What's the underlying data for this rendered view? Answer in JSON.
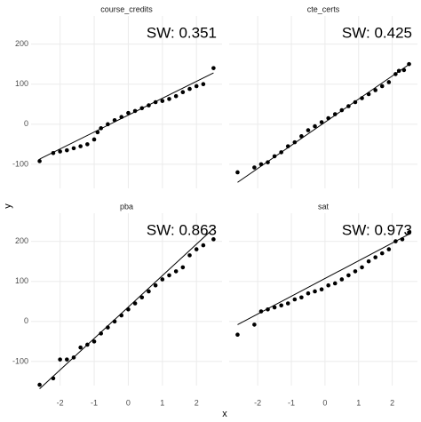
{
  "chart_data": {
    "type": "scatter",
    "xlabel": "x",
    "ylabel": "y",
    "xlim": [
      -2.85,
      2.75
    ],
    "ylim": [
      -160,
      270
    ],
    "xticks": [
      -2,
      -1,
      0,
      1,
      2
    ],
    "yticks": [
      -100,
      0,
      100,
      200
    ],
    "grid": true,
    "point_color": "#000000",
    "line_color": "#000000",
    "panels": [
      {
        "title": "course_credits",
        "annotation": "SW: 0.351",
        "x": [
          -2.6,
          -2.2,
          -2.0,
          -1.8,
          -1.6,
          -1.4,
          -1.2,
          -1.0,
          -0.9,
          -0.8,
          -0.6,
          -0.4,
          -0.2,
          0,
          0.2,
          0.4,
          0.6,
          0.8,
          1.0,
          1.2,
          1.4,
          1.6,
          1.8,
          2.0,
          2.2,
          2.5
        ],
        "values": [
          -92,
          -72,
          -68,
          -65,
          -60,
          -55,
          -50,
          -38,
          -20,
          -10,
          0,
          10,
          18,
          28,
          33,
          40,
          47,
          55,
          58,
          63,
          70,
          80,
          88,
          95,
          100,
          140
        ],
        "line": {
          "x": [
            -2.6,
            2.5
          ],
          "values": [
            -87,
            128
          ]
        }
      },
      {
        "title": "cte_certs",
        "annotation": "SW: 0.425",
        "x": [
          -2.6,
          -2.1,
          -1.9,
          -1.7,
          -1.5,
          -1.3,
          -1.1,
          -0.9,
          -0.7,
          -0.5,
          -0.3,
          -0.1,
          0.1,
          0.3,
          0.5,
          0.7,
          0.9,
          1.1,
          1.3,
          1.5,
          1.7,
          1.9,
          2.1,
          2.2,
          2.35,
          2.5
        ],
        "values": [
          -120,
          -108,
          -100,
          -95,
          -80,
          -70,
          -55,
          -45,
          -30,
          -15,
          -5,
          5,
          15,
          25,
          35,
          45,
          55,
          65,
          75,
          85,
          95,
          105,
          125,
          133,
          135,
          150
        ],
        "line": {
          "x": [
            -2.6,
            2.55
          ],
          "values": [
            -145,
            152
          ]
        }
      },
      {
        "title": "pba",
        "annotation": "SW: 0.863",
        "x": [
          -2.6,
          -2.2,
          -2.0,
          -1.8,
          -1.6,
          -1.4,
          -1.2,
          -1.0,
          -0.8,
          -0.6,
          -0.4,
          -0.2,
          0,
          0.2,
          0.4,
          0.6,
          0.8,
          1.0,
          1.2,
          1.4,
          1.6,
          1.8,
          2.0,
          2.2,
          2.5
        ],
        "values": [
          -158,
          -142,
          -95,
          -95,
          -90,
          -65,
          -58,
          -50,
          -30,
          -15,
          0,
          15,
          30,
          45,
          60,
          75,
          90,
          105,
          115,
          125,
          135,
          165,
          180,
          190,
          205
        ],
        "line": {
          "x": [
            -2.6,
            2.5
          ],
          "values": [
            -168,
            232
          ]
        }
      },
      {
        "title": "sat",
        "annotation": "SW: 0.973",
        "x": [
          -2.6,
          -2.1,
          -1.9,
          -1.7,
          -1.5,
          -1.3,
          -1.1,
          -0.9,
          -0.7,
          -0.5,
          -0.3,
          -0.1,
          0.1,
          0.3,
          0.5,
          0.7,
          0.9,
          1.1,
          1.3,
          1.5,
          1.7,
          1.9,
          2.1,
          2.3,
          2.5
        ],
        "values": [
          -33,
          -8,
          25,
          30,
          35,
          40,
          45,
          55,
          60,
          70,
          75,
          80,
          90,
          95,
          105,
          115,
          125,
          135,
          150,
          160,
          170,
          180,
          200,
          205,
          222
        ],
        "line": {
          "x": [
            -2.6,
            2.55
          ],
          "values": [
            -8,
            220
          ]
        }
      }
    ]
  }
}
